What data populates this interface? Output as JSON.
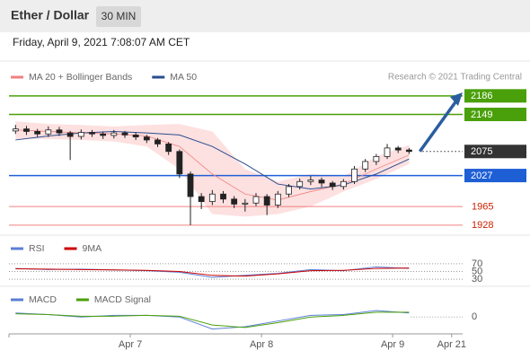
{
  "header": {
    "title": "Ether / Dollar",
    "timeframe": "30 MIN",
    "timestamp": "Friday, April 9, 2021 7:08:07 AM CET"
  },
  "chart_data": [
    {
      "type": "candlestick",
      "credit": "Research © 2021 Trading Central",
      "xlim": [
        -22.2,
        60.8
      ],
      "xticks": [
        {
          "value": 0,
          "label": "Apr 7"
        },
        {
          "value": 24,
          "label": "Apr 8"
        },
        {
          "value": 48,
          "label": "Apr 9"
        },
        {
          "value": 58.8,
          "label": "Apr 21"
        }
      ],
      "ylim": [
        1908,
        2243
      ],
      "x": [
        -21,
        -19,
        -17,
        -15,
        -13,
        -11,
        -9,
        -7,
        -5,
        -3,
        -1,
        1,
        3,
        5,
        7,
        9,
        11,
        13,
        15,
        17,
        19,
        21,
        23,
        25,
        27,
        29,
        31,
        33,
        35,
        37,
        39,
        41,
        43,
        45,
        47,
        49,
        51
      ],
      "open": [
        2116,
        2120,
        2115,
        2110,
        2118,
        2112,
        2105,
        2113,
        2110,
        2107,
        2112,
        2108,
        2104,
        2098,
        2090,
        2075,
        2030,
        1985,
        1975,
        1990,
        1980,
        1970,
        1972,
        1985,
        1968,
        1990,
        2005,
        2015,
        2018,
        2012,
        2005,
        2015,
        2040,
        2055,
        2065,
        2082,
        2078
      ],
      "high": [
        2128,
        2126,
        2120,
        2125,
        2124,
        2116,
        2119,
        2118,
        2115,
        2118,
        2116,
        2113,
        2108,
        2102,
        2094,
        2079,
        2035,
        1992,
        1998,
        1996,
        1986,
        1980,
        1992,
        1990,
        1996,
        2010,
        2021,
        2026,
        2023,
        2016,
        2020,
        2046,
        2060,
        2070,
        2090,
        2086,
        2082
      ],
      "low": [
        2110,
        2108,
        2104,
        2104,
        2106,
        2058,
        2099,
        2104,
        2100,
        2101,
        2102,
        2098,
        2092,
        2084,
        2068,
        2022,
        1928,
        1960,
        1968,
        1972,
        1962,
        1955,
        1966,
        1948,
        1962,
        1984,
        1999,
        2008,
        2004,
        1998,
        1999,
        2010,
        2034,
        2048,
        2060,
        2072,
        2070
      ],
      "close": [
        2120,
        2115,
        2110,
        2118,
        2112,
        2105,
        2113,
        2110,
        2107,
        2112,
        2108,
        2104,
        2098,
        2090,
        2075,
        2030,
        1985,
        1975,
        1990,
        1980,
        1970,
        1972,
        1985,
        1968,
        1990,
        2005,
        2015,
        2018,
        2012,
        2005,
        2015,
        2040,
        2055,
        2065,
        2082,
        2078,
        2075
      ],
      "series": [
        {
          "name": "MA 20 + Bollinger Bands",
          "color": "#f08080",
          "band_color": "#fde0e0",
          "x": [
            -21,
            -15,
            -9,
            -3,
            3,
            9,
            15,
            21,
            27,
            33,
            39,
            45,
            51
          ],
          "values": [
            2118,
            2115,
            2112,
            2110,
            2106,
            2085,
            2030,
            1990,
            1978,
            1995,
            2010,
            2040,
            2068
          ],
          "upper": [
            2135,
            2130,
            2128,
            2125,
            2128,
            2130,
            2115,
            2040,
            2015,
            2030,
            2025,
            2065,
            2088
          ],
          "lower": [
            2100,
            2100,
            2098,
            2095,
            2085,
            2040,
            1950,
            1945,
            1950,
            1965,
            1995,
            2020,
            2050
          ]
        },
        {
          "name": "MA 50",
          "color": "#2a4d8f",
          "x": [
            -21,
            -15,
            -9,
            -3,
            3,
            9,
            15,
            21,
            27,
            33,
            39,
            45,
            51
          ],
          "values": [
            2098,
            2106,
            2112,
            2115,
            2112,
            2108,
            2085,
            2050,
            2010,
            2000,
            2008,
            2030,
            2060
          ]
        }
      ],
      "levels": [
        {
          "value": 2186,
          "color": "#4aa00a",
          "style": "solid",
          "box": true
        },
        {
          "value": 2149,
          "color": "#4aa00a",
          "style": "solid",
          "box": true
        },
        {
          "value": 2075,
          "color": "#333333",
          "style": "dotted",
          "box": true
        },
        {
          "value": 2027,
          "color": "#1f5fd6",
          "style": "solid",
          "box": true
        },
        {
          "value": 1965,
          "color": "#f08080",
          "style": "solid",
          "box": false
        },
        {
          "value": 1928,
          "color": "#f08080",
          "style": "solid",
          "box": false
        }
      ]
    },
    {
      "type": "line",
      "ylim": [
        14,
        93
      ],
      "yticks": [
        30,
        50,
        70
      ],
      "x": [
        -21,
        -15,
        -9,
        -3,
        3,
        9,
        15,
        21,
        27,
        33,
        39,
        45,
        51
      ],
      "series": [
        {
          "name": "RSI",
          "color": "#5b7fd6",
          "values": [
            58,
            55,
            56,
            54,
            52,
            48,
            35,
            40,
            45,
            55,
            52,
            62,
            58
          ]
        },
        {
          "name": "9MA",
          "color": "#cc0000",
          "values": [
            57,
            56,
            55,
            54,
            53,
            50,
            40,
            38,
            44,
            52,
            53,
            58,
            59
          ]
        }
      ]
    },
    {
      "type": "line",
      "ylim": [
        -21,
        17
      ],
      "yticks": [
        0
      ],
      "x": [
        -21,
        -15,
        -9,
        -3,
        3,
        9,
        15,
        21,
        27,
        33,
        39,
        45,
        51
      ],
      "series": [
        {
          "name": "MACD",
          "color": "#5b7fd6",
          "values": [
            5,
            3,
            0,
            2,
            2,
            0,
            -15,
            -12,
            -5,
            2,
            3,
            8,
            5
          ]
        },
        {
          "name": "MACD Signal",
          "color": "#4aa00a",
          "values": [
            4,
            3,
            1,
            1,
            2,
            1,
            -10,
            -13,
            -7,
            0,
            2,
            6,
            6
          ]
        }
      ]
    }
  ]
}
